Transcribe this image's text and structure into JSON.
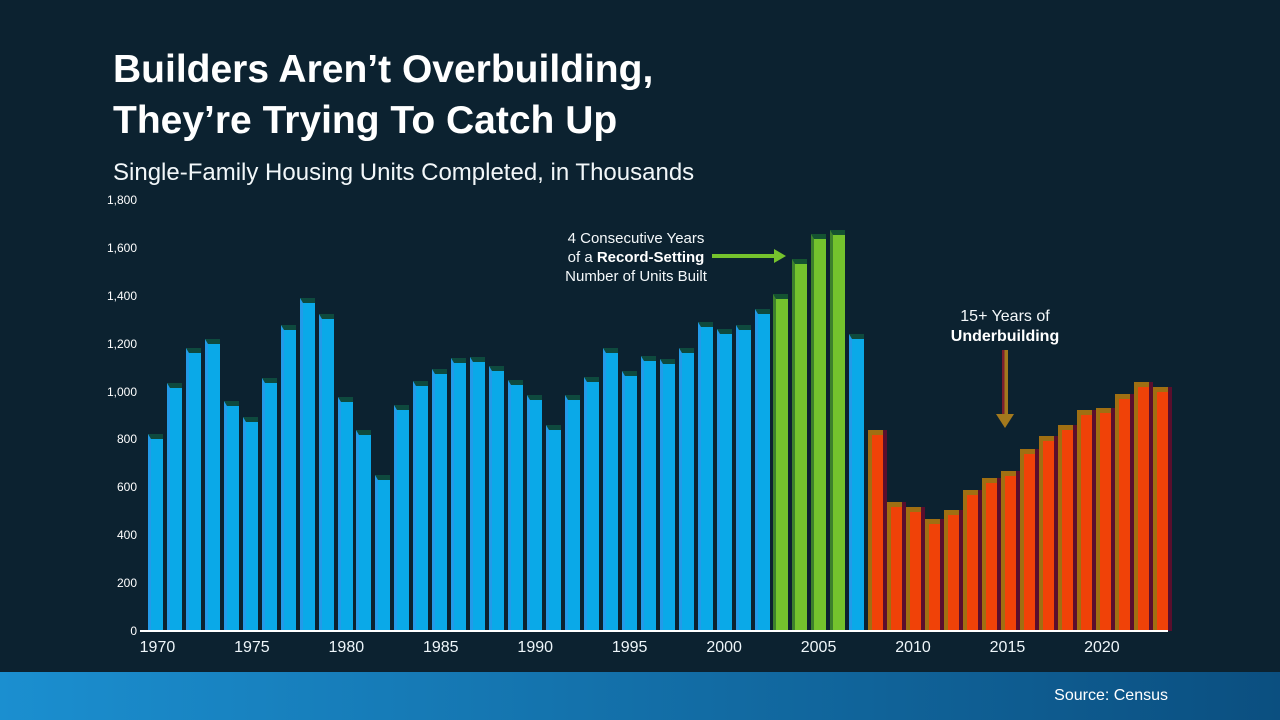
{
  "slide": {
    "title_line1": "Builders Aren’t Overbuilding,",
    "title_line2": "They’re Trying To Catch Up",
    "subtitle": "Single-Family Housing Units Completed, in Thousands",
    "source": "Source: Census"
  },
  "annotations": {
    "record": {
      "line1": "4 Consecutive Years",
      "line2_prefix": "of a ",
      "line2_bold": "Record-Setting",
      "line3": "Number of Units Built"
    },
    "under": {
      "line1": "15+ Years of",
      "line2": "Underbuilding"
    }
  },
  "colors": {
    "background": "#0c2230",
    "bar_blue": "#0aa9e8",
    "bar_green": "#74c32d",
    "bar_red": "#f04208",
    "cap_blue": "#0e4a3e",
    "cap_green": "#145231",
    "cap_red": "#a06f12",
    "gap_red": "#5a0e2d",
    "arrow_green": "#76c32d",
    "arrow_olive": "#a3791d",
    "arrow_maroon": "#7d1f2e",
    "footer_left": "#1b8fd0",
    "footer_right": "#0b4f80"
  },
  "chart_data": {
    "type": "bar",
    "title": "Single-Family Housing Units Completed, in Thousands",
    "x": [
      1970,
      1971,
      1972,
      1973,
      1974,
      1975,
      1976,
      1977,
      1978,
      1979,
      1980,
      1981,
      1982,
      1983,
      1984,
      1985,
      1986,
      1987,
      1988,
      1989,
      1990,
      1991,
      1992,
      1993,
      1994,
      1995,
      1996,
      1997,
      1998,
      1999,
      2000,
      2001,
      2002,
      2003,
      2004,
      2005,
      2006,
      2007,
      2008,
      2009,
      2010,
      2011,
      2012,
      2013,
      2014,
      2015,
      2016,
      2017,
      2018,
      2019,
      2020,
      2021,
      2022,
      2023
    ],
    "values": [
      802,
      1014,
      1160,
      1197,
      940,
      875,
      1034,
      1258,
      1369,
      1301,
      957,
      819,
      632,
      924,
      1025,
      1072,
      1120,
      1123,
      1085,
      1026,
      966,
      838,
      964,
      1039,
      1160,
      1066,
      1129,
      1116,
      1160,
      1270,
      1242,
      1256,
      1325,
      1386,
      1532,
      1636,
      1654,
      1218,
      819,
      520,
      496,
      447,
      483,
      569,
      620,
      648,
      738,
      795,
      840,
      903,
      912,
      971,
      1018,
      998
    ],
    "ylim": [
      0,
      1800
    ],
    "grid": false,
    "legend": false,
    "segments": [
      {
        "name": "completions",
        "color_key": "blue",
        "from": 1970,
        "to": 2002
      },
      {
        "name": "record-setting years",
        "color_key": "green",
        "from": 2003,
        "to": 2006
      },
      {
        "name": "completions",
        "color_key": "blue",
        "from": 2007,
        "to": 2007
      },
      {
        "name": "underbuilding years",
        "color_key": "red",
        "from": 2008,
        "to": 2023
      }
    ],
    "y_ticks": [
      {
        "value": 0,
        "label": "0"
      },
      {
        "value": 200,
        "label": "200"
      },
      {
        "value": 400,
        "label": "400"
      },
      {
        "value": 600,
        "label": "600"
      },
      {
        "value": 800,
        "label": "800"
      },
      {
        "value": 1000,
        "label": "1,000"
      },
      {
        "value": 1200,
        "label": "1,200"
      },
      {
        "value": 1400,
        "label": "1,400"
      },
      {
        "value": 1600,
        "label": "1,600"
      },
      {
        "value": 1800,
        "label": "1,800"
      }
    ],
    "x_ticks": [
      1970,
      1975,
      1980,
      1985,
      1990,
      1995,
      2000,
      2005,
      2010,
      2015,
      2020
    ]
  }
}
